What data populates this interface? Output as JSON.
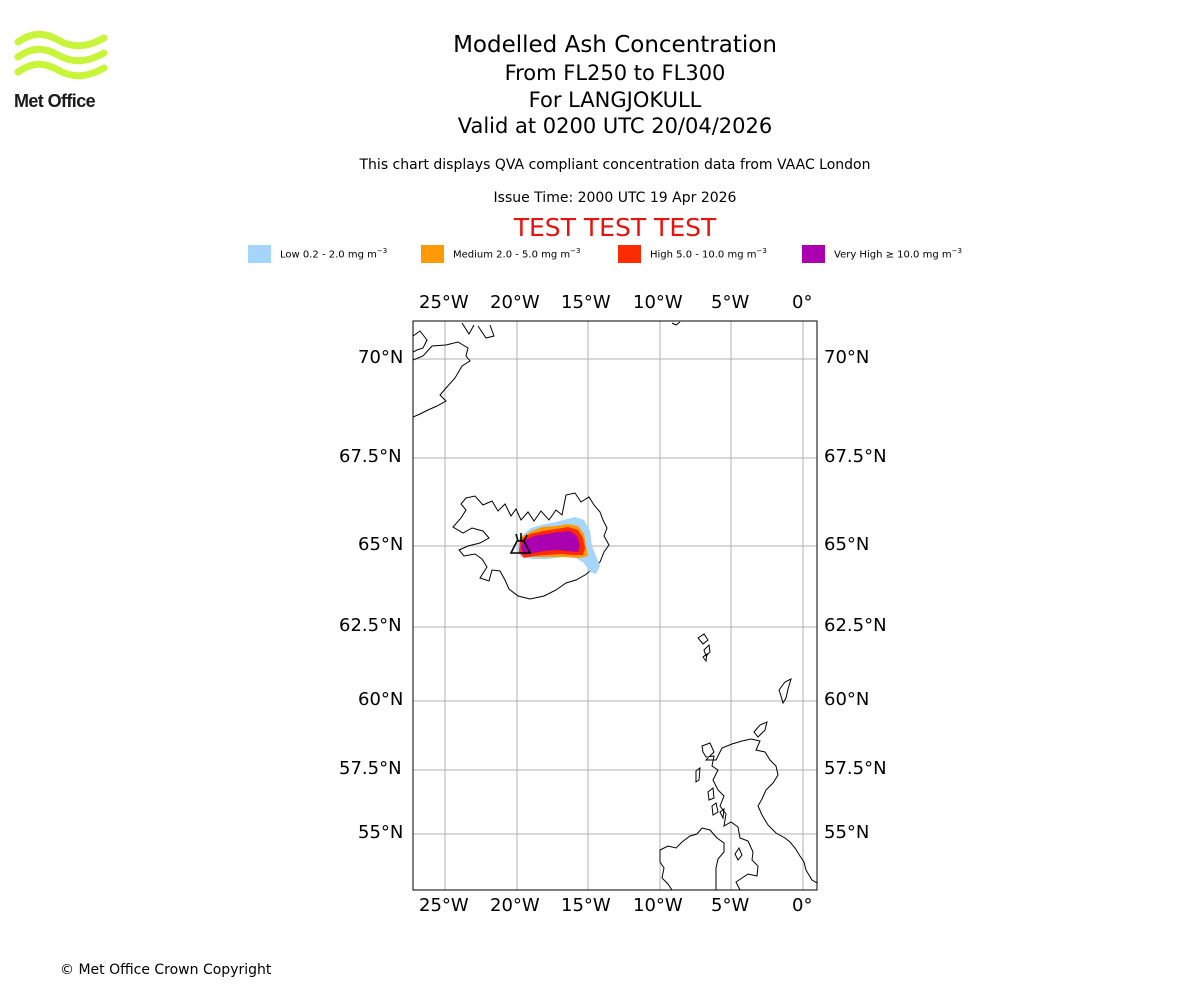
{
  "logo": {
    "text": "Met Office",
    "color": "#c8f53a"
  },
  "title": {
    "main": "Modelled Ash Concentration",
    "levels": "From FL250 to FL300",
    "volcano": "For LANGJOKULL",
    "valid": "Valid at 0200 UTC 20/04/2026"
  },
  "compliance_note": "This chart displays QVA compliant concentration data from VAAC London",
  "issue_time": "Issue Time: 2000 UTC 19 Apr 2026",
  "test_banner": "TEST TEST TEST",
  "legend": [
    {
      "label": "Low 0.2 - 2.0 mg m",
      "unit_exp": "−3",
      "color": "#a5d5fb"
    },
    {
      "label": "Medium 2.0 - 5.0 mg m",
      "unit_exp": "−3",
      "color": "#ff9a04"
    },
    {
      "label": "High 5.0 - 10.0 mg m",
      "unit_exp": "−3",
      "color": "#ff2b00"
    },
    {
      "label": "Very High ≥ 10.0 mg m",
      "unit_exp": "−3",
      "color": "#aa00b0"
    }
  ],
  "axes": {
    "lon_labels": [
      "25°W",
      "20°W",
      "15°W",
      "10°W",
      "5°W",
      "0°"
    ],
    "lat_labels": [
      "70°N",
      "67.5°N",
      "65°N",
      "62.5°N",
      "60°N",
      "57.5°N",
      "55°N"
    ]
  },
  "copyright": "© Met Office Crown Copyright"
}
